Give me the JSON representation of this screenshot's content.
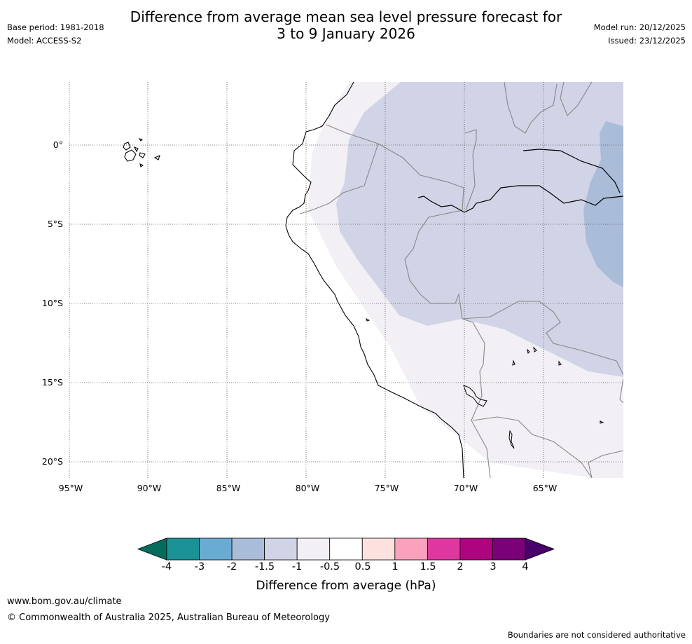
{
  "title_line1": "Difference from average mean sea level pressure forecast for",
  "title_line2": "3 to 9 January 2026",
  "base_period": "Base period: 1981-2018",
  "model": "Model: ACCESS-S2",
  "model_run": "Model run: 20/12/2025",
  "issued": "Issued: 23/12/2025",
  "lat_ticks": [
    "0°",
    "5°S",
    "10°S",
    "15°S",
    "20°S"
  ],
  "lon_ticks": [
    "95°W",
    "90°W",
    "85°W",
    "80°W",
    "75°W",
    "70°W",
    "65°W"
  ],
  "colorbar": {
    "label": "Difference from average (hPa)",
    "ticks": [
      "-4",
      "-3",
      "-2",
      "-1.5",
      "-1",
      "-0.5",
      "0.5",
      "1",
      "1.5",
      "2",
      "3",
      "4"
    ],
    "colors": [
      "#1a9295",
      "#6aabd4",
      "#a9bcd8",
      "#d1d3e6",
      "#f2eff5",
      "#ffffff",
      "#fde1df",
      "#f9a1bd",
      "#df37a0",
      "#ae047f",
      "#7a0177"
    ],
    "under_color": "#036c5d",
    "over_color": "#49006a"
  },
  "legend_colors": {
    "minus_2_to_minus_1_5": "#a9bcd8",
    "minus_1_5_to_minus_1": "#d1d3e6",
    "minus_1_to_minus_0_5": "#f2eff5"
  },
  "footer_url": "www.bom.gov.au/climate",
  "footer_copyright": "© Commonwealth of Australia 2025, Australian Bureau of Meteorology",
  "footer_disclaimer": "Boundaries are not considered authoritative"
}
